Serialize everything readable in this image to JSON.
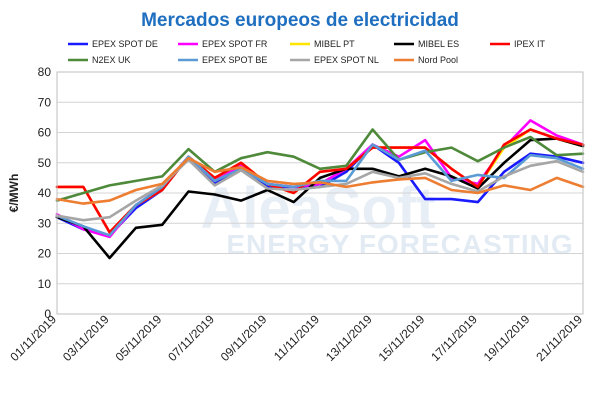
{
  "chart_data": {
    "type": "line",
    "title": "Mercados europeos de electricidad",
    "ylabel": "€/MWh",
    "xlabel": "",
    "ylim": [
      0,
      80
    ],
    "yticks": [
      0,
      10,
      20,
      30,
      40,
      50,
      60,
      70,
      80
    ],
    "grid": true,
    "legend_position": "top",
    "watermark": {
      "brand": "AleaSoft",
      "tagline": "ENERGY FORECASTING"
    },
    "x": [
      "01/11/2019",
      "02/11/2019",
      "03/11/2019",
      "04/11/2019",
      "05/11/2019",
      "06/11/2019",
      "07/11/2019",
      "08/11/2019",
      "09/11/2019",
      "10/11/2019",
      "11/11/2019",
      "12/11/2019",
      "13/11/2019",
      "14/11/2019",
      "15/11/2019",
      "16/11/2019",
      "17/11/2019",
      "18/11/2019",
      "19/11/2019",
      "20/11/2019",
      "21/11/2019"
    ],
    "xtick_labels": [
      "01/11/2019",
      "03/11/2019",
      "05/11/2019",
      "07/11/2019",
      "09/11/2019",
      "11/11/2019",
      "13/11/2019",
      "15/11/2019",
      "17/11/2019",
      "19/11/2019",
      "21/11/2019"
    ],
    "series": [
      {
        "name": "EPEX SPOT DE",
        "color": "#1a1aff",
        "values": [
          32,
          28,
          26,
          35,
          41,
          52,
          43,
          48,
          42,
          42,
          42,
          47,
          56,
          50,
          38,
          38,
          37,
          47,
          53,
          52,
          50
        ]
      },
      {
        "name": "EPEX SPOT FR",
        "color": "#ff00ff",
        "values": [
          33,
          28,
          25.5,
          36,
          42,
          52,
          44,
          49,
          43,
          42,
          43,
          48,
          56,
          52,
          57.5,
          45,
          43,
          55,
          64,
          59,
          56
        ]
      },
      {
        "name": "MIBEL PT",
        "color": "#ffe400",
        "values": [
          42,
          42,
          27,
          36,
          41,
          52,
          45,
          50,
          43,
          40,
          47,
          48,
          55,
          55,
          55,
          48,
          42,
          55,
          61,
          58,
          55.5
        ]
      },
      {
        "name": "MIBEL ES",
        "color": "#000000",
        "values": [
          32,
          29,
          18.5,
          28.5,
          29.5,
          40.5,
          39.5,
          37.5,
          41,
          37,
          45,
          48,
          48,
          45.5,
          48,
          45.5,
          41.5,
          50,
          57.5,
          58,
          55.5
        ]
      },
      {
        "name": "IPEX IT",
        "color": "#ff0000",
        "values": [
          42,
          42,
          27,
          36,
          41,
          52,
          45,
          50,
          43,
          40,
          47,
          48,
          55,
          55,
          55,
          48,
          42,
          56,
          61,
          58,
          56
        ]
      },
      {
        "name": "N2EX UK",
        "color": "#4e8a3a",
        "values": [
          37.5,
          40,
          42.5,
          44,
          45.5,
          54.5,
          47,
          51.5,
          53.5,
          52,
          48,
          49,
          61,
          51,
          53.5,
          55,
          50.5,
          55,
          58.5,
          52.5,
          53
        ]
      },
      {
        "name": "EPEX SPOT BE",
        "color": "#5b9bd5",
        "values": [
          32.5,
          29,
          26,
          36,
          42,
          52,
          44,
          48,
          43,
          42,
          44,
          44,
          56,
          51,
          54,
          44,
          46,
          45,
          52.5,
          51.5,
          48
        ]
      },
      {
        "name": "EPEX SPOT NL",
        "color": "#a6a6a6",
        "values": [
          32.5,
          31,
          32,
          37.5,
          42.5,
          51,
          42.5,
          47.5,
          41.5,
          41,
          42,
          43,
          47,
          45,
          46.5,
          43,
          40.5,
          45.5,
          49,
          50.5,
          47
        ]
      },
      {
        "name": "Nord Pool",
        "color": "#ed7d31",
        "values": [
          38,
          36.5,
          37.5,
          41,
          43,
          51.5,
          47,
          48.5,
          44,
          43,
          43.5,
          42,
          43.5,
          44.5,
          45,
          41,
          40,
          42.5,
          41,
          45,
          42
        ]
      }
    ]
  }
}
